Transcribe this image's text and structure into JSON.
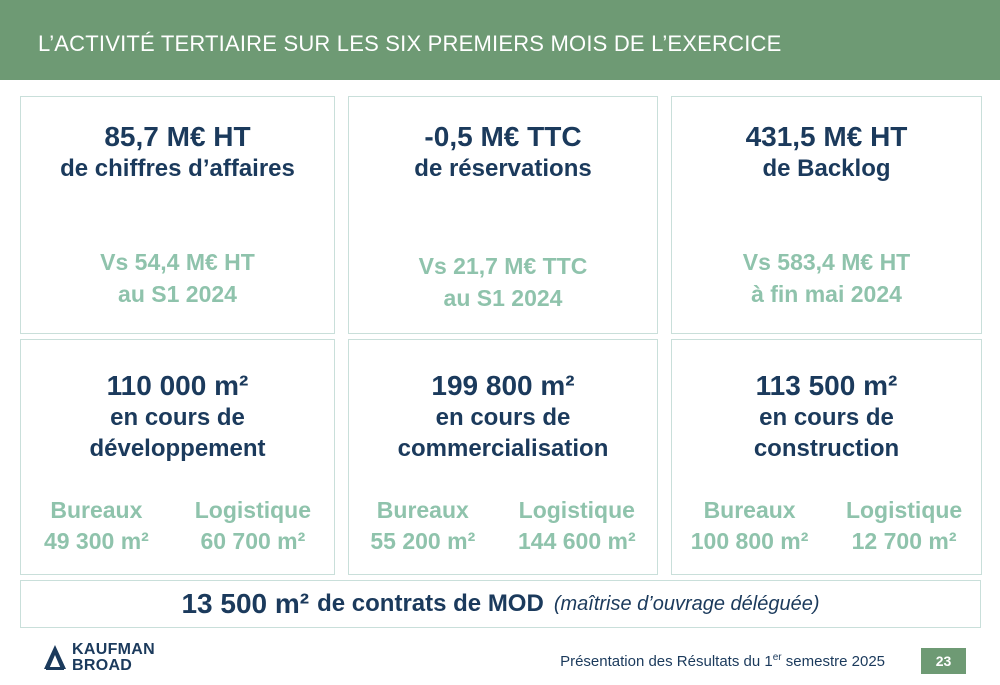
{
  "header": {
    "title": "L’ACTIVITÉ TERTIAIRE SUR LES SIX PREMIERS MOIS DE L’EXERCICE"
  },
  "top_cards": [
    {
      "value": "85,7 M€ HT",
      "label": "de chiffres d’affaires",
      "cmp1": "Vs 54,4 M€ HT",
      "cmp2": "au S1 2024"
    },
    {
      "value": "-0,5 M€ TTC",
      "label": "de réservations",
      "cmp1": "Vs 21,7 M€ TTC",
      "cmp2": "au S1 2024"
    },
    {
      "value": "431,5 M€ HT",
      "label": "de Backlog",
      "cmp1": "Vs 583,4 M€ HT",
      "cmp2": "à fin mai 2024"
    }
  ],
  "bottom_cards": [
    {
      "value": "110 000 m²",
      "line1": "en cours de",
      "line2": "développement",
      "left_label": "Bureaux",
      "left_value": "49 300 m²",
      "right_label": "Logistique",
      "right_value": "60 700 m²"
    },
    {
      "value": "199 800 m²",
      "line1": "en cours de",
      "line2": "commercialisation",
      "left_label": "Bureaux",
      "left_value": "55 200 m²",
      "right_label": "Logistique",
      "right_value": "144 600 m²"
    },
    {
      "value": "113 500 m²",
      "line1": "en cours de",
      "line2": "construction",
      "left_label": "Bureaux",
      "left_value": "100 800 m²",
      "right_label": "Logistique",
      "right_value": "12 700 m²"
    }
  ],
  "mod": {
    "value": "13 500 m²",
    "label": "de contrats de MOD",
    "note": "(maîtrise d’ouvrage déléguée)"
  },
  "logo": {
    "line1": "KAUFMAN",
    "line2": "BROAD"
  },
  "footer": {
    "text_before": "Présentation des Résultats du 1",
    "sup": "er",
    "text_after": " semestre 2025",
    "page": "23"
  },
  "colors": {
    "header": "#6e9a74",
    "navy": "#1b3a5c",
    "mint": "#8fc3ac",
    "border": "#c9dfda"
  }
}
